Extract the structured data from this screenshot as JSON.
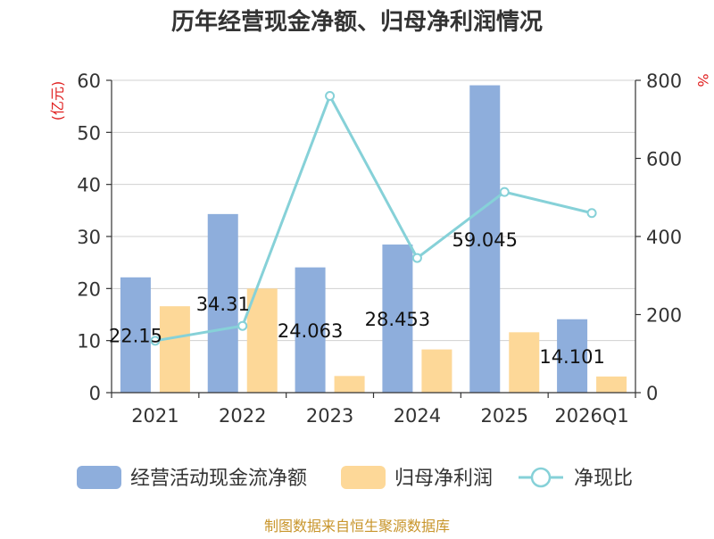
{
  "chart_data": {
    "type": "bar",
    "title": "历年经营现金净额、归母净利润情况",
    "left_axis_label": "(亿元)",
    "right_axis_label": "%",
    "categories": [
      "2021",
      "2022",
      "2023",
      "2024",
      "2025",
      "2026Q1"
    ],
    "left_ylim": [
      0,
      60
    ],
    "left_ticks": [
      0,
      10,
      20,
      30,
      40,
      50,
      60
    ],
    "right_ylim": [
      0,
      800
    ],
    "right_ticks": [
      0,
      200,
      400,
      600,
      800
    ],
    "grid": true,
    "legend_position": "bottom",
    "series": [
      {
        "name": "经营活动现金流净额",
        "type": "bar",
        "axis": "left",
        "color": "#8eaedc",
        "values": [
          22.15,
          34.31,
          24.063,
          28.453,
          59.045,
          14.101
        ],
        "labels": [
          "22.15",
          "34.31",
          "24.063",
          "28.453",
          "59.045",
          "14.101"
        ]
      },
      {
        "name": "归母净利润",
        "type": "bar",
        "axis": "left",
        "color": "#fdd898",
        "values": [
          16.6,
          20.0,
          3.2,
          8.3,
          11.6,
          3.1
        ]
      },
      {
        "name": "净现比",
        "type": "line",
        "axis": "right",
        "color": "#86d1d8",
        "values": [
          133,
          171,
          760,
          345,
          514,
          460
        ]
      }
    ]
  },
  "source": "制图数据来自恒生聚源数据库"
}
